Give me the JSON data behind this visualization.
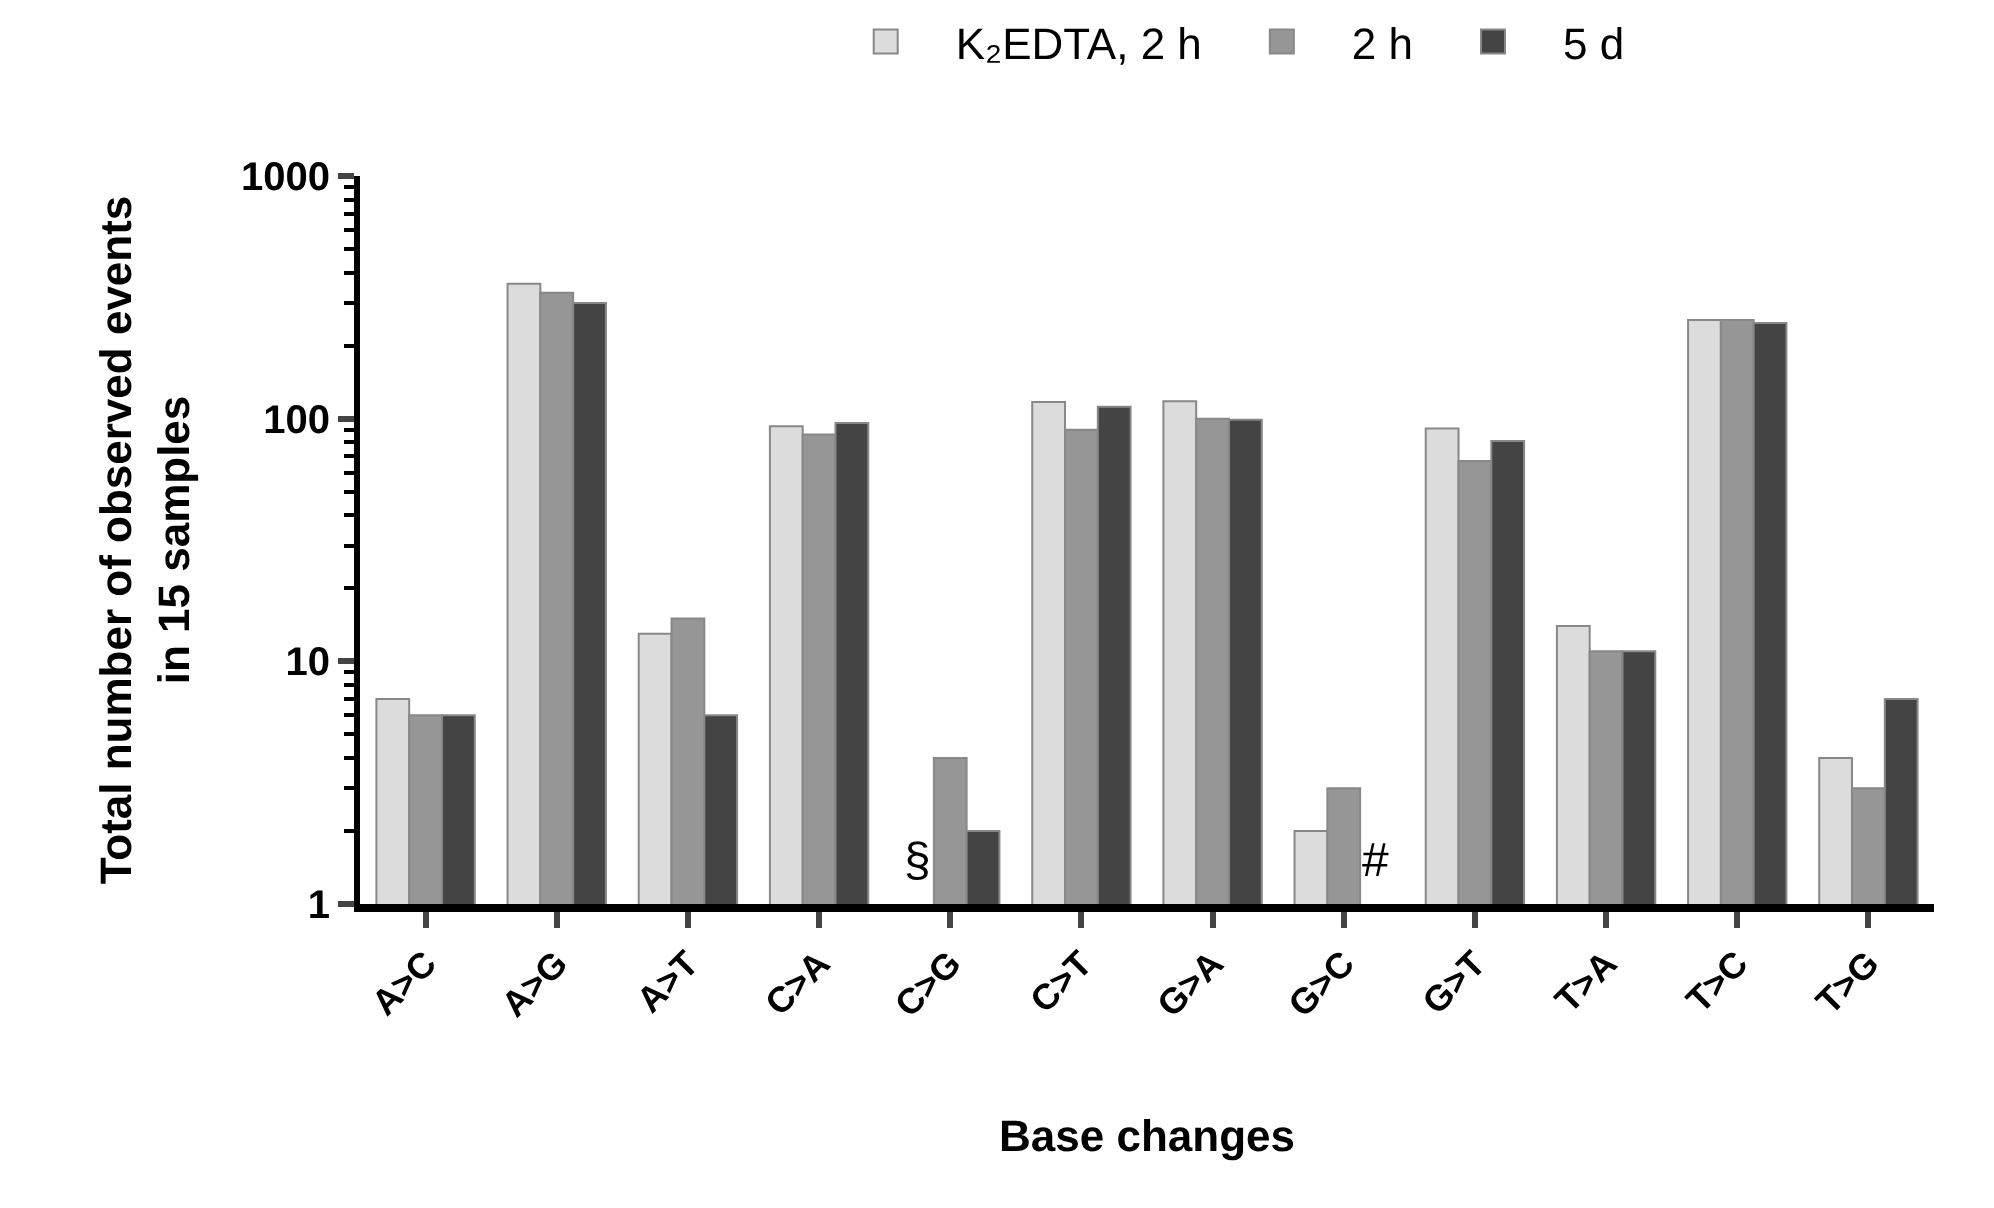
{
  "chart_data": {
    "type": "bar",
    "xlabel": "Base changes",
    "ylabel": "Total number of observed events in 15 samples",
    "categories": [
      "A>C",
      "A>G",
      "A>T",
      "C>A",
      "C>G",
      "C>T",
      "G>A",
      "G>C",
      "G>T",
      "T>A",
      "T>C",
      "T>G"
    ],
    "series": [
      {
        "name": "K₂EDTA, 2 h",
        "color": "#dcdcdc",
        "values": [
          7,
          360,
          13,
          93,
          null,
          117,
          118,
          2,
          91,
          14,
          255,
          4
        ]
      },
      {
        "name": "2 h",
        "color": "#969696",
        "values": [
          6,
          330,
          15,
          86,
          4,
          90,
          100,
          3,
          67,
          11,
          255,
          3
        ]
      },
      {
        "name": "5 d",
        "color": "#444444",
        "values": [
          6,
          300,
          6,
          96,
          2,
          112,
          99,
          null,
          81,
          11,
          248,
          7
        ]
      }
    ],
    "log": "y",
    "ylim": [
      1,
      1000
    ],
    "yticks": [
      1,
      10,
      100,
      1000
    ],
    "grid": false,
    "legend": "top",
    "annotations": [
      "§",
      "#"
    ]
  }
}
